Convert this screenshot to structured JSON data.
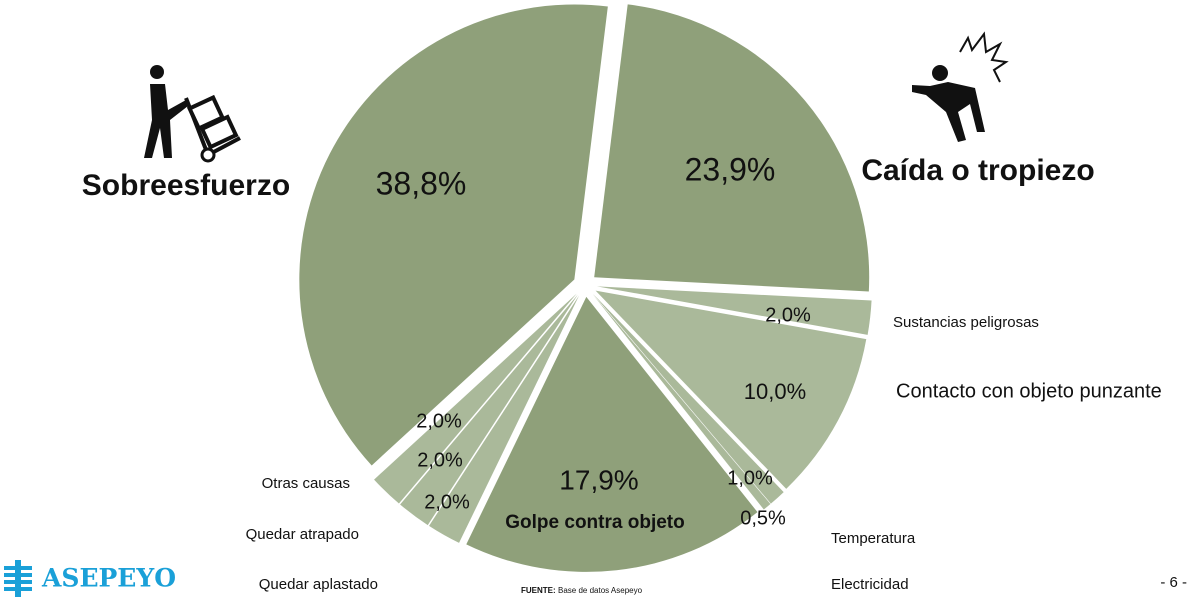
{
  "chart_data": {
    "type": "pie",
    "categories": [
      "Caída o tropiezo",
      "Sustancias peligrosas",
      "Contacto con objeto punzante",
      "Temperatura",
      "Electricidad",
      "Golpe contra objeto",
      "Quedar aplastado",
      "Quedar atrapado",
      "Otras causas",
      "Sobreesfuerzo"
    ],
    "values": [
      23.9,
      2.0,
      10.0,
      1.0,
      0.5,
      17.9,
      2.0,
      2.0,
      2.0,
      38.8
    ],
    "value_labels": [
      "23,9%",
      "2,0%",
      "10,0%",
      "1,0%",
      "0,5%",
      "17,9%",
      "2,0%",
      "2,0%",
      "2,0%",
      "38,8%"
    ],
    "colors": [
      "#8fa07a",
      "#aab99a",
      "#aab99a",
      "#aab99a",
      "#aab99a",
      "#8fa07a",
      "#aab99a",
      "#aab99a",
      "#aab99a",
      "#8fa07a"
    ]
  },
  "footer": {
    "source_label": "FUENTE:",
    "source": "Base de datos Asepeyo",
    "page": "- 6 -",
    "logo": "ASEPEYO"
  }
}
